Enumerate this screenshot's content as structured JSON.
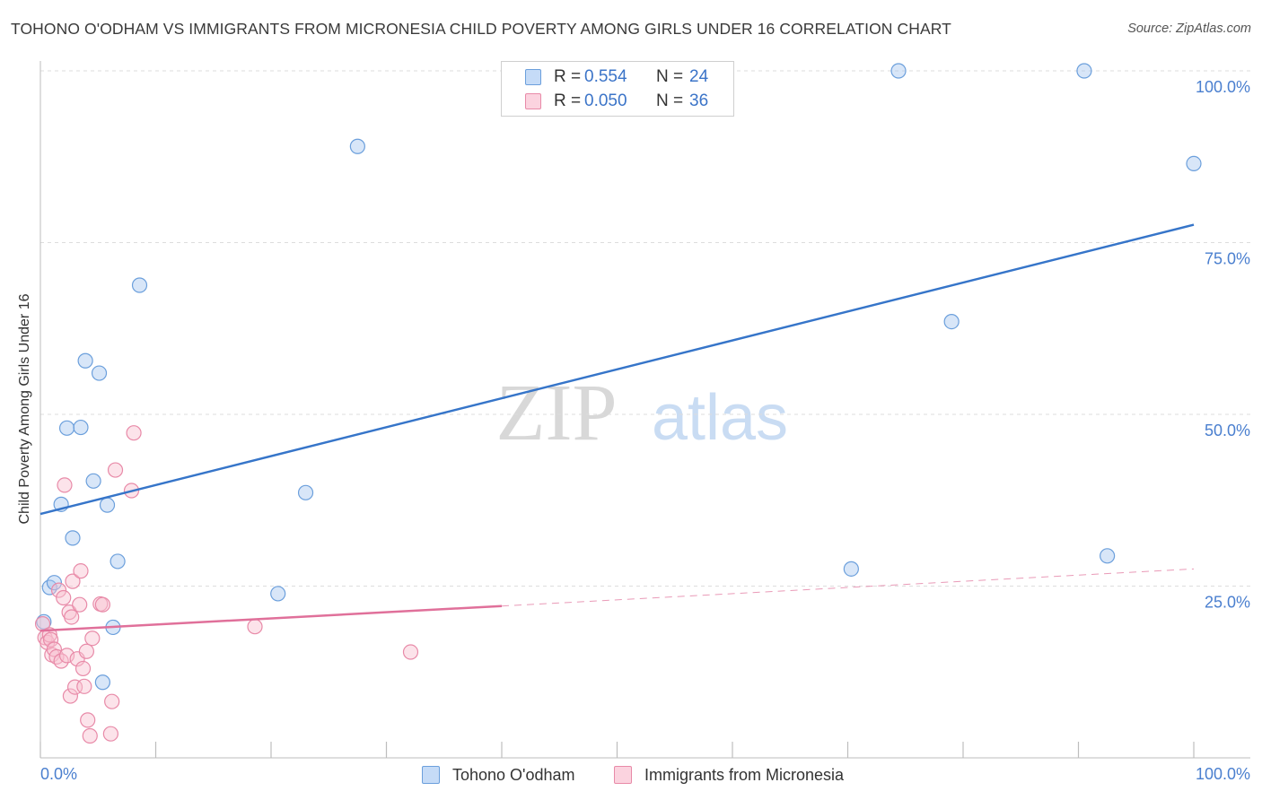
{
  "title": "TOHONO O'ODHAM VS IMMIGRANTS FROM MICRONESIA CHILD POVERTY AMONG GIRLS UNDER 16 CORRELATION CHART",
  "source": "Source: ZipAtlas.com",
  "watermark": {
    "zip": "ZIP",
    "atlas": "atlas"
  },
  "legend": {
    "r_label": "R =",
    "n_label": "N =",
    "rows": [
      {
        "r": "0.554",
        "n": "24",
        "color": "#a8c8f0",
        "border": "#6b9fdc"
      },
      {
        "r": "0.050",
        "n": "36",
        "color": "#f8c0d0",
        "border": "#e88aa8"
      }
    ]
  },
  "bottom_legend": [
    {
      "label": "Tohono O'odham",
      "color": "#c5dbf7",
      "border": "#6b9fdc"
    },
    {
      "label": "Immigrants from Micronesia",
      "color": "#fbd3df",
      "border": "#e88aa8"
    }
  ],
  "chart_data": {
    "type": "scatter",
    "title": "TOHONO O'ODHAM VS IMMIGRANTS FROM MICRONESIA CHILD POVERTY AMONG GIRLS UNDER 16 CORRELATION CHART",
    "xlabel": "",
    "ylabel": "Child Poverty Among Girls Under 16",
    "xlim": [
      0,
      100
    ],
    "ylim": [
      0,
      100
    ],
    "x_tick_labels": {
      "left": "0.0%",
      "right": "100.0%"
    },
    "y_ticks": [
      {
        "value": 25,
        "label": "25.0%"
      },
      {
        "value": 50,
        "label": "50.0%"
      },
      {
        "value": 75,
        "label": "75.0%"
      },
      {
        "value": 100,
        "label": "100.0%"
      }
    ],
    "grid": true,
    "series": [
      {
        "name": "Tohono O'odham",
        "color": "#6b9fdc",
        "fill": "rgba(168,200,240,0.45)",
        "trend": {
          "x0": 0,
          "y0": 35.5,
          "x1": 100,
          "y1": 77.6,
          "color": "#3675c9",
          "dashed_from": null
        },
        "points": [
          [
            0.3,
            19.8
          ],
          [
            0.8,
            24.8
          ],
          [
            1.2,
            25.5
          ],
          [
            1.8,
            36.9
          ],
          [
            2.3,
            48.0
          ],
          [
            2.8,
            32.0
          ],
          [
            3.5,
            48.1
          ],
          [
            3.9,
            57.8
          ],
          [
            4.6,
            40.3
          ],
          [
            5.1,
            56.0
          ],
          [
            5.4,
            11.0
          ],
          [
            5.8,
            36.8
          ],
          [
            6.3,
            19.0
          ],
          [
            6.7,
            28.6
          ],
          [
            8.6,
            68.8
          ],
          [
            20.6,
            23.9
          ],
          [
            23.0,
            38.6
          ],
          [
            27.5,
            89.0
          ],
          [
            70.3,
            27.5
          ],
          [
            74.4,
            100.0
          ],
          [
            79.0,
            63.5
          ],
          [
            90.5,
            100.0
          ],
          [
            92.5,
            29.4
          ],
          [
            100.0,
            86.5
          ]
        ]
      },
      {
        "name": "Immigrants from Micronesia",
        "color": "#e88aa8",
        "fill": "rgba(248,192,208,0.45)",
        "trend": {
          "x0": 0,
          "y0": 18.5,
          "x1": 100,
          "y1": 27.5,
          "color": "#e0709a",
          "dashed_from": 40
        },
        "points": [
          [
            0.2,
            19.5
          ],
          [
            0.4,
            17.5
          ],
          [
            0.6,
            16.8
          ],
          [
            0.8,
            17.9
          ],
          [
            0.9,
            17.2
          ],
          [
            1.0,
            15.0
          ],
          [
            1.2,
            15.8
          ],
          [
            1.4,
            14.7
          ],
          [
            1.6,
            24.4
          ],
          [
            1.8,
            14.1
          ],
          [
            2.0,
            23.3
          ],
          [
            2.1,
            39.7
          ],
          [
            2.3,
            14.9
          ],
          [
            2.5,
            21.2
          ],
          [
            2.6,
            9.0
          ],
          [
            2.7,
            20.5
          ],
          [
            2.8,
            25.7
          ],
          [
            3.0,
            10.3
          ],
          [
            3.2,
            14.4
          ],
          [
            3.4,
            22.3
          ],
          [
            3.5,
            27.2
          ],
          [
            3.7,
            13.0
          ],
          [
            3.8,
            10.4
          ],
          [
            4.0,
            15.5
          ],
          [
            4.1,
            5.5
          ],
          [
            4.3,
            3.2
          ],
          [
            4.5,
            17.4
          ],
          [
            5.2,
            22.4
          ],
          [
            5.4,
            22.3
          ],
          [
            6.1,
            3.5
          ],
          [
            6.2,
            8.2
          ],
          [
            6.5,
            41.9
          ],
          [
            7.9,
            38.9
          ],
          [
            8.1,
            47.3
          ],
          [
            18.6,
            19.1
          ],
          [
            32.1,
            15.4
          ]
        ]
      }
    ]
  }
}
